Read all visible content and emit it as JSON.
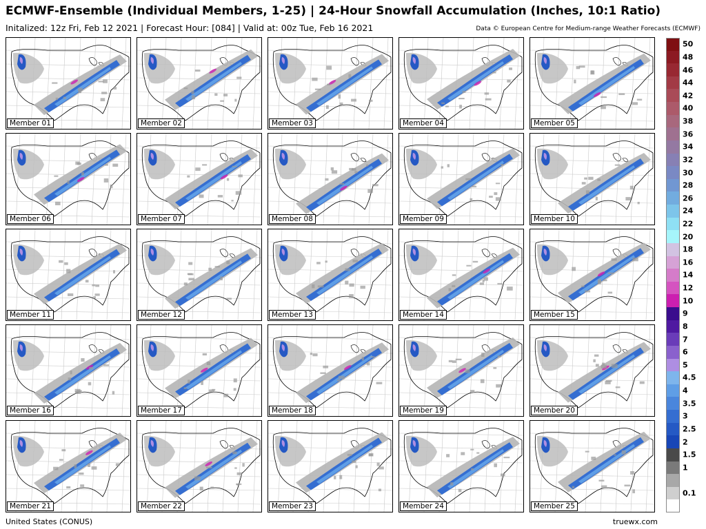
{
  "header": {
    "title": "ECMWF-Ensemble (Individual Members, 1-25) | 24-Hour Snowfall Accumulation (Inches, 10:1 Ratio)",
    "subtitle": "Initalized: 12z Fri, Feb 12 2021 | Forecast Hour: [084] | Valid at: 00z Tue, Feb 16 2021",
    "credit": "Data © European Centre for Medium-range Weather Forecasts (ECMWF)"
  },
  "panels": [
    {
      "label": "Member 01"
    },
    {
      "label": "Member 02"
    },
    {
      "label": "Member 03"
    },
    {
      "label": "Member 04"
    },
    {
      "label": "Member 05"
    },
    {
      "label": "Member 06"
    },
    {
      "label": "Member 07"
    },
    {
      "label": "Member 08"
    },
    {
      "label": "Member 09"
    },
    {
      "label": "Member 10"
    },
    {
      "label": "Member 11"
    },
    {
      "label": "Member 12"
    },
    {
      "label": "Member 13"
    },
    {
      "label": "Member 14"
    },
    {
      "label": "Member 15"
    },
    {
      "label": "Member 16"
    },
    {
      "label": "Member 17"
    },
    {
      "label": "Member 18"
    },
    {
      "label": "Member 19"
    },
    {
      "label": "Member 20"
    },
    {
      "label": "Member 21"
    },
    {
      "label": "Member 22"
    },
    {
      "label": "Member 23"
    },
    {
      "label": "Member 24"
    },
    {
      "label": "Member 25"
    }
  ],
  "legend": [
    {
      "label": "50",
      "color": "#7f0f12"
    },
    {
      "label": "48",
      "color": "#8c1a22"
    },
    {
      "label": "46",
      "color": "#982832"
    },
    {
      "label": "44",
      "color": "#a23a45"
    },
    {
      "label": "42",
      "color": "#a94b57"
    },
    {
      "label": "40",
      "color": "#ac5a6a"
    },
    {
      "label": "38",
      "color": "#a8687d"
    },
    {
      "label": "36",
      "color": "#9f7190"
    },
    {
      "label": "34",
      "color": "#9479a2"
    },
    {
      "label": "32",
      "color": "#8780b4"
    },
    {
      "label": "30",
      "color": "#7a89c4"
    },
    {
      "label": "28",
      "color": "#7197d2"
    },
    {
      "label": "26",
      "color": "#72acdf"
    },
    {
      "label": "24",
      "color": "#7dc5ea"
    },
    {
      "label": "22",
      "color": "#8fe0f4"
    },
    {
      "label": "20",
      "color": "#a6f5fb"
    },
    {
      "label": "18",
      "color": "#d2c3e2"
    },
    {
      "label": "16",
      "color": "#d6a2d6"
    },
    {
      "label": "14",
      "color": "#d57cc9"
    },
    {
      "label": "12",
      "color": "#d553c0"
    },
    {
      "label": "10",
      "color": "#cc1fb0"
    },
    {
      "label": "9",
      "color": "#3a0c8d"
    },
    {
      "label": "8",
      "color": "#4f1aa1"
    },
    {
      "label": "7",
      "color": "#6a3cb9"
    },
    {
      "label": "6",
      "color": "#8a61cd"
    },
    {
      "label": "5",
      "color": "#ae8ee2"
    },
    {
      "label": "4.5",
      "color": "#7eb5ec"
    },
    {
      "label": "4",
      "color": "#5f9ee6"
    },
    {
      "label": "3.5",
      "color": "#4a86dc"
    },
    {
      "label": "3",
      "color": "#356ed1"
    },
    {
      "label": "2.5",
      "color": "#2559c4"
    },
    {
      "label": "2",
      "color": "#1846b7"
    },
    {
      "label": "1.5",
      "color": "#4a4a4a"
    },
    {
      "label": "1",
      "color": "#7a7a7a"
    },
    {
      "label": "",
      "color": "#a8a8a8"
    },
    {
      "label": "0.1",
      "color": "#cfcfcf"
    },
    {
      "label": "",
      "color": "#ffffff"
    }
  ],
  "footer": {
    "left": "United States (CONUS)",
    "right": "truewx.com"
  }
}
